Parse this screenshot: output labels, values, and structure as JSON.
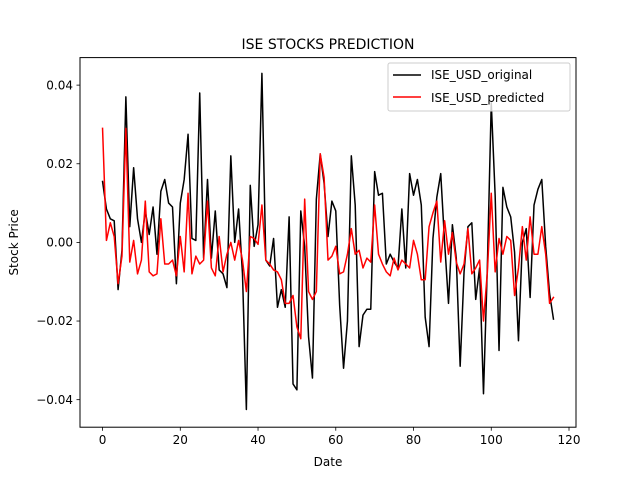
{
  "chart_data": {
    "type": "line",
    "title": "ISE STOCKS PREDICTION",
    "xlabel": "Date",
    "ylabel": "Stock Price",
    "xlim": [
      -5.8,
      121.8
    ],
    "ylim": [
      -0.047,
      0.047
    ],
    "xticks": [
      0,
      20,
      40,
      60,
      80,
      100,
      120
    ],
    "yticks": [
      -0.04,
      -0.02,
      0.0,
      0.02,
      0.04
    ],
    "xtick_labels": [
      "0",
      "20",
      "40",
      "60",
      "80",
      "100",
      "120"
    ],
    "ytick_labels": [
      "−0.04",
      "−0.02",
      "0.00",
      "0.02",
      "0.04"
    ],
    "grid": false,
    "legend_position": "upper right",
    "series": [
      {
        "name": "ISE_USD_original",
        "color": "#000000",
        "x": [
          0,
          1,
          2,
          3,
          4,
          5,
          6,
          7,
          8,
          9,
          10,
          11,
          12,
          13,
          14,
          15,
          16,
          17,
          18,
          19,
          20,
          21,
          22,
          23,
          24,
          25,
          26,
          27,
          28,
          29,
          30,
          31,
          32,
          33,
          34,
          35,
          36,
          37,
          38,
          39,
          40,
          41,
          42,
          43,
          44,
          45,
          46,
          47,
          48,
          49,
          50,
          51,
          52,
          53,
          54,
          55,
          56,
          57,
          58,
          59,
          60,
          61,
          62,
          63,
          64,
          65,
          66,
          67,
          68,
          69,
          70,
          71,
          72,
          73,
          74,
          75,
          76,
          77,
          78,
          79,
          80,
          81,
          82,
          83,
          84,
          85,
          86,
          87,
          88,
          89,
          90,
          91,
          92,
          93,
          94,
          95,
          96,
          97,
          98,
          99,
          100,
          101,
          102,
          103,
          104,
          105,
          106,
          107,
          108,
          109,
          110,
          111,
          112,
          113,
          114,
          115,
          116
        ],
        "values": [
          0.0155,
          0.0085,
          0.006,
          0.0055,
          -0.012,
          -0.002,
          0.037,
          0.004,
          0.019,
          0.006,
          0.0,
          0.008,
          0.002,
          0.009,
          -0.003,
          0.013,
          0.016,
          0.01,
          0.009,
          -0.0105,
          0.01,
          0.016,
          0.0275,
          0.001,
          0.0005,
          0.038,
          -0.004,
          0.016,
          -0.004,
          0.008,
          -0.007,
          -0.008,
          -0.0115,
          0.022,
          0.0,
          0.0085,
          -0.008,
          -0.0425,
          0.0145,
          -0.001,
          0.0045,
          0.043,
          -0.0045,
          -0.006,
          0.001,
          -0.0165,
          -0.012,
          -0.0165,
          0.0065,
          -0.036,
          -0.0375,
          0.008,
          -0.001,
          -0.024,
          -0.0345,
          0.011,
          0.0225,
          0.015,
          0.0015,
          0.0105,
          0.008,
          -0.016,
          -0.032,
          -0.02,
          0.022,
          0.0095,
          -0.0265,
          -0.0185,
          -0.017,
          -0.017,
          0.018,
          0.012,
          0.0125,
          -0.0055,
          -0.003,
          -0.005,
          -0.0065,
          0.0085,
          -0.0065,
          0.0175,
          0.012,
          0.016,
          0.0095,
          -0.019,
          -0.0265,
          0.001,
          0.0115,
          0.0175,
          0.0,
          -0.0155,
          0.0045,
          -0.004,
          -0.0315,
          -0.0075,
          0.004,
          0.005,
          -0.0145,
          -0.0065,
          -0.0385,
          -0.006,
          0.0355,
          0.012,
          -0.0275,
          0.014,
          0.009,
          0.0065,
          -0.0025,
          -0.025,
          0.0,
          0.0035,
          -0.014,
          0.0095,
          0.0135,
          0.016,
          -0.001,
          -0.013,
          -0.0195
        ]
      },
      {
        "name": "ISE_USD_predicted",
        "color": "#ff0000",
        "x": [
          0,
          1,
          2,
          3,
          4,
          5,
          6,
          7,
          8,
          9,
          10,
          11,
          12,
          13,
          14,
          15,
          16,
          17,
          18,
          19,
          20,
          21,
          22,
          23,
          24,
          25,
          26,
          27,
          28,
          29,
          30,
          31,
          32,
          33,
          34,
          35,
          36,
          37,
          38,
          39,
          40,
          41,
          42,
          43,
          44,
          45,
          46,
          47,
          48,
          49,
          50,
          51,
          52,
          53,
          54,
          55,
          56,
          57,
          58,
          59,
          60,
          61,
          62,
          63,
          64,
          65,
          66,
          67,
          68,
          69,
          70,
          71,
          72,
          73,
          74,
          75,
          76,
          77,
          78,
          79,
          80,
          81,
          82,
          83,
          84,
          85,
          86,
          87,
          88,
          89,
          90,
          91,
          92,
          93,
          94,
          95,
          96,
          97,
          98,
          99,
          100,
          101,
          102,
          103,
          104,
          105,
          106,
          107,
          108,
          109,
          110,
          111,
          112,
          113,
          114,
          115,
          116
        ],
        "values": [
          0.029,
          0.0005,
          0.005,
          0.0015,
          -0.0105,
          -0.0035,
          0.029,
          -0.005,
          0.0005,
          -0.008,
          -0.0045,
          0.0105,
          -0.0075,
          -0.0085,
          -0.008,
          0.006,
          -0.0055,
          -0.0055,
          -0.0045,
          -0.0085,
          0.0015,
          -0.0075,
          0.0125,
          -0.008,
          -0.0035,
          -0.0055,
          -0.0045,
          0.0105,
          -0.0065,
          -0.0085,
          0.0015,
          -0.0075,
          -0.003,
          0.0,
          -0.0045,
          0.0005,
          -0.0045,
          -0.0125,
          0.0015,
          0.001,
          -0.0005,
          0.0095,
          -0.0045,
          -0.0055,
          -0.007,
          -0.0075,
          -0.0095,
          -0.0155,
          -0.0155,
          -0.0135,
          -0.0215,
          -0.0245,
          0.011,
          -0.0125,
          -0.0145,
          -0.0125,
          0.0225,
          0.0165,
          -0.0045,
          -0.0035,
          -0.001,
          -0.008,
          -0.0075,
          -0.003,
          0.0035,
          -0.003,
          -0.002,
          -0.0065,
          -0.004,
          -0.005,
          0.0095,
          -0.003,
          -0.0055,
          -0.0075,
          -0.0085,
          -0.004,
          -0.007,
          -0.0045,
          -0.0055,
          -0.0065,
          0.0005,
          -0.003,
          -0.0095,
          -0.0095,
          0.004,
          0.0075,
          0.0105,
          -0.005,
          0.0055,
          -0.003,
          0.0025,
          -0.005,
          -0.008,
          -0.0055,
          0.0035,
          -0.008,
          -0.0065,
          -0.0045,
          -0.02,
          -0.0075,
          0.0125,
          -0.0075,
          0.001,
          -0.003,
          0.0015,
          0.0005,
          -0.0135,
          -0.0065,
          0.004,
          -0.0045,
          0.0065,
          -0.003,
          -0.003,
          0.004,
          -0.003,
          -0.0155,
          -0.014
        ]
      }
    ]
  }
}
